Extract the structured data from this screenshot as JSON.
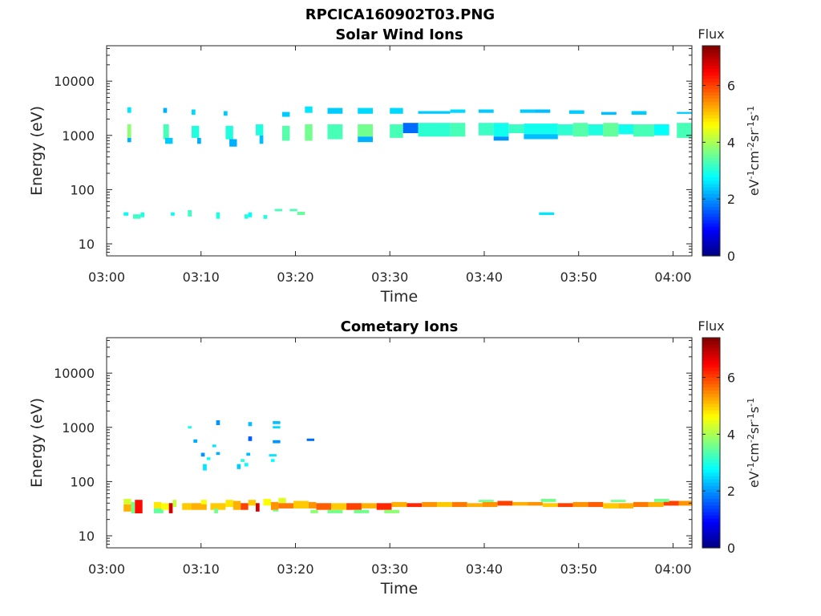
{
  "figure": {
    "title": "RPCICA160902T03.PNG"
  },
  "chart_data": [
    {
      "type": "heatmap",
      "title": "Solar Wind Ions",
      "xlabel": "Time",
      "ylabel": "Energy (eV)",
      "x_tick_labels": [
        "03:00",
        "03:10",
        "03:20",
        "03:30",
        "03:40",
        "03:50",
        "04:00"
      ],
      "x_ticks_minutes": [
        0,
        10,
        20,
        30,
        40,
        50,
        60
      ],
      "xlim_minutes": [
        0,
        62
      ],
      "yscale": "log",
      "ylim": [
        6,
        45000
      ],
      "y_tick_labels": [
        "10",
        "100",
        "1000",
        "10000"
      ],
      "y_ticks": [
        10,
        100,
        1000,
        10000
      ],
      "colorbar": {
        "label": "Flux",
        "unit_label": "eV-1cm-2sr-1s-1",
        "range": [
          0,
          7.4
        ],
        "ticks": [
          0,
          2,
          4,
          6
        ],
        "tick_labels": [
          "0",
          "2",
          "4",
          "6"
        ]
      },
      "cells": [
        [
          2.2,
          2.6,
          2600,
          3300,
          2.6
        ],
        [
          2.2,
          2.6,
          900,
          1600,
          3.8
        ],
        [
          2.2,
          2.6,
          750,
          900,
          2.2
        ],
        [
          6.0,
          6.4,
          2600,
          3200,
          2.2
        ],
        [
          6.0,
          6.6,
          850,
          1600,
          3.3
        ],
        [
          6.2,
          7.0,
          700,
          900,
          2.4
        ],
        [
          9.0,
          9.4,
          2400,
          3000,
          2.5
        ],
        [
          9.0,
          9.8,
          900,
          1500,
          3.0
        ],
        [
          9.6,
          10.0,
          700,
          900,
          2.2
        ],
        [
          12.4,
          12.8,
          2300,
          2800,
          2.4
        ],
        [
          12.6,
          13.4,
          850,
          1500,
          3.0
        ],
        [
          13.0,
          13.8,
          620,
          850,
          2.2
        ],
        [
          15.8,
          16.6,
          1000,
          1600,
          3.0
        ],
        [
          16.2,
          16.6,
          700,
          1000,
          2.3
        ],
        [
          18.6,
          19.4,
          2200,
          2700,
          2.4
        ],
        [
          18.6,
          19.4,
          800,
          1500,
          3.4
        ],
        [
          21.0,
          21.8,
          2600,
          3400,
          2.6
        ],
        [
          21.0,
          21.8,
          800,
          1600,
          3.6
        ],
        [
          23.4,
          25.0,
          2500,
          3200,
          2.4
        ],
        [
          23.4,
          25.0,
          850,
          1600,
          3.3
        ],
        [
          26.6,
          28.2,
          2500,
          3200,
          2.5
        ],
        [
          26.6,
          28.2,
          950,
          1600,
          3.6
        ],
        [
          26.6,
          28.2,
          750,
          950,
          2.2
        ],
        [
          30.0,
          31.4,
          2500,
          3200,
          2.5
        ],
        [
          30.0,
          31.4,
          900,
          1600,
          3.3
        ],
        [
          31.4,
          33.0,
          1100,
          1700,
          1.7
        ],
        [
          33.0,
          36.4,
          2500,
          2800,
          2.4
        ],
        [
          33.0,
          36.4,
          950,
          1700,
          3.1
        ],
        [
          36.4,
          38.0,
          2600,
          3000,
          2.5
        ],
        [
          36.4,
          38.0,
          950,
          1700,
          3.3
        ],
        [
          39.4,
          41.0,
          2600,
          3000,
          2.4
        ],
        [
          39.4,
          41.0,
          1000,
          1700,
          3.2
        ],
        [
          41.0,
          42.6,
          950,
          1700,
          2.9
        ],
        [
          41.0,
          42.6,
          800,
          950,
          2.0
        ],
        [
          42.6,
          44.2,
          1100,
          1600,
          3.2
        ],
        [
          44.2,
          47.8,
          1050,
          1650,
          2.9
        ],
        [
          44.2,
          47.8,
          850,
          1050,
          2.3
        ],
        [
          43.8,
          45.4,
          2600,
          3000,
          2.4
        ],
        [
          45.4,
          47.0,
          2600,
          3000,
          2.3
        ],
        [
          47.8,
          49.4,
          1000,
          1600,
          3.1
        ],
        [
          49.4,
          51.0,
          950,
          1700,
          3.4
        ],
        [
          51.0,
          52.6,
          1000,
          1600,
          3.0
        ],
        [
          52.6,
          54.2,
          950,
          1700,
          3.5
        ],
        [
          54.2,
          55.8,
          1050,
          1600,
          2.9
        ],
        [
          55.8,
          58.0,
          950,
          1600,
          3.3
        ],
        [
          58.0,
          59.6,
          1000,
          1600,
          2.8
        ],
        [
          60.4,
          62.0,
          900,
          1700,
          3.3
        ],
        [
          60.4,
          62.0,
          2500,
          2700,
          2.4
        ],
        [
          49.0,
          50.6,
          2500,
          2900,
          2.4
        ],
        [
          52.4,
          54.0,
          2400,
          2700,
          2.3
        ],
        [
          55.6,
          57.2,
          2400,
          2800,
          2.4
        ],
        [
          1.8,
          2.3,
          33,
          38,
          2.8
        ],
        [
          2.8,
          3.6,
          29,
          35,
          3.2
        ],
        [
          3.6,
          4.0,
          31,
          38,
          3.0
        ],
        [
          6.8,
          7.2,
          33,
          38,
          2.8
        ],
        [
          8.6,
          9.0,
          32,
          42,
          3.2
        ],
        [
          11.6,
          12.0,
          29,
          38,
          3.0
        ],
        [
          14.6,
          15.0,
          29,
          35,
          3.0
        ],
        [
          15.0,
          15.4,
          31,
          38,
          2.8
        ],
        [
          16.6,
          17.0,
          29,
          34,
          3.0
        ],
        [
          17.8,
          18.6,
          40,
          44,
          3.3
        ],
        [
          19.4,
          20.2,
          40,
          44,
          3.3
        ],
        [
          20.2,
          21.0,
          34,
          39,
          3.5
        ],
        [
          45.8,
          47.4,
          34,
          38,
          2.6
        ]
      ]
    },
    {
      "type": "heatmap",
      "title": "Cometary Ions",
      "xlabel": "Time",
      "ylabel": "Energy (eV)",
      "x_tick_labels": [
        "03:00",
        "03:10",
        "03:20",
        "03:30",
        "03:40",
        "03:50",
        "04:00"
      ],
      "x_ticks_minutes": [
        0,
        10,
        20,
        30,
        40,
        50,
        60
      ],
      "xlim_minutes": [
        0,
        62
      ],
      "yscale": "log",
      "ylim": [
        6,
        45000
      ],
      "y_tick_labels": [
        "10",
        "100",
        "1000",
        "10000"
      ],
      "y_ticks": [
        10,
        100,
        1000,
        10000
      ],
      "colorbar": {
        "label": "Flux",
        "unit_label": "eV-1cm-2sr-1s-1",
        "range": [
          0,
          7.4
        ],
        "ticks": [
          0,
          2,
          4,
          6
        ],
        "tick_labels": [
          "0",
          "2",
          "4",
          "6"
        ]
      },
      "cells": [
        [
          8.6,
          9.0,
          950,
          1050,
          2.9
        ],
        [
          11.6,
          12.0,
          1100,
          1350,
          2.0
        ],
        [
          15.0,
          15.4,
          1050,
          1250,
          2.3
        ],
        [
          17.6,
          18.4,
          1150,
          1300,
          2.3
        ],
        [
          17.6,
          18.4,
          950,
          1050,
          2.5
        ],
        [
          21.2,
          22.0,
          560,
          620,
          1.7
        ],
        [
          15.0,
          15.4,
          560,
          680,
          1.6
        ],
        [
          17.6,
          18.4,
          510,
          580,
          2.0
        ],
        [
          9.2,
          9.6,
          520,
          600,
          2.2
        ],
        [
          10.0,
          10.4,
          290,
          340,
          2.0
        ],
        [
          11.2,
          11.6,
          430,
          480,
          2.6
        ],
        [
          11.6,
          12.0,
          310,
          350,
          2.2
        ],
        [
          10.6,
          11.0,
          250,
          280,
          2.8
        ],
        [
          10.2,
          10.6,
          160,
          210,
          2.6
        ],
        [
          14.2,
          14.6,
          230,
          260,
          3.0
        ],
        [
          13.8,
          14.2,
          170,
          210,
          2.4
        ],
        [
          14.6,
          15.0,
          190,
          220,
          2.8
        ],
        [
          14.8,
          15.2,
          300,
          340,
          2.3
        ],
        [
          17.2,
          18.0,
          290,
          320,
          2.6
        ],
        [
          17.4,
          17.8,
          230,
          260,
          2.8
        ],
        [
          1.8,
          2.6,
          38,
          48,
          4.3
        ],
        [
          1.8,
          2.6,
          28,
          38,
          5.2
        ],
        [
          2.6,
          3.0,
          26,
          42,
          3.6
        ],
        [
          3.0,
          3.8,
          26,
          46,
          6.4
        ],
        [
          5.0,
          5.8,
          32,
          42,
          4.8
        ],
        [
          5.0,
          6.0,
          26,
          32,
          3.5
        ],
        [
          5.8,
          6.6,
          30,
          40,
          4.6
        ],
        [
          6.6,
          7.0,
          26,
          40,
          6.8
        ],
        [
          7.0,
          7.4,
          34,
          46,
          4.2
        ],
        [
          8.0,
          9.0,
          30,
          40,
          5.0
        ],
        [
          9.0,
          10.6,
          30,
          40,
          5.2
        ],
        [
          10.0,
          10.6,
          38,
          46,
          4.6
        ],
        [
          11.0,
          12.6,
          30,
          40,
          5.0
        ],
        [
          11.4,
          11.8,
          26,
          32,
          3.6
        ],
        [
          12.6,
          13.4,
          34,
          46,
          4.8
        ],
        [
          13.4,
          14.2,
          30,
          44,
          5.2
        ],
        [
          14.2,
          15.0,
          30,
          40,
          6.0
        ],
        [
          15.0,
          15.8,
          36,
          46,
          5.0
        ],
        [
          15.8,
          16.2,
          28,
          40,
          6.8
        ],
        [
          16.6,
          17.4,
          36,
          48,
          4.6
        ],
        [
          17.4,
          18.2,
          30,
          42,
          5.4
        ],
        [
          17.6,
          18.2,
          28,
          30,
          3.6
        ],
        [
          18.2,
          19.0,
          40,
          50,
          4.4
        ],
        [
          18.2,
          19.8,
          32,
          40,
          5.6
        ],
        [
          19.8,
          21.4,
          32,
          44,
          5.0
        ],
        [
          21.4,
          22.2,
          32,
          42,
          5.4
        ],
        [
          22.2,
          23.8,
          30,
          40,
          5.8
        ],
        [
          21.6,
          22.4,
          26,
          30,
          3.8
        ],
        [
          23.8,
          25.4,
          30,
          40,
          5.0
        ],
        [
          25.4,
          27.0,
          30,
          40,
          6.0
        ],
        [
          27.0,
          28.6,
          32,
          40,
          5.2
        ],
        [
          28.6,
          30.2,
          30,
          40,
          6.2
        ],
        [
          26.2,
          27.8,
          26,
          30,
          3.6
        ],
        [
          30.2,
          31.8,
          34,
          42,
          5.2
        ],
        [
          31.8,
          33.4,
          34,
          40,
          6.2
        ],
        [
          29.4,
          31.0,
          26,
          30,
          3.8
        ],
        [
          33.4,
          35.0,
          34,
          42,
          5.4
        ],
        [
          35.0,
          36.6,
          34,
          42,
          5.0
        ],
        [
          36.6,
          38.2,
          34,
          42,
          5.6
        ],
        [
          38.2,
          39.8,
          34,
          40,
          5.2
        ],
        [
          39.8,
          41.4,
          34,
          42,
          5.4
        ],
        [
          41.4,
          43.0,
          36,
          44,
          6.0
        ],
        [
          43.0,
          44.6,
          36,
          42,
          5.2
        ],
        [
          44.6,
          46.2,
          36,
          42,
          5.4
        ],
        [
          46.2,
          47.8,
          34,
          40,
          5.0
        ],
        [
          47.8,
          49.4,
          34,
          40,
          6.0
        ],
        [
          49.4,
          51.0,
          34,
          42,
          5.4
        ],
        [
          51.0,
          52.6,
          34,
          42,
          5.8
        ],
        [
          52.6,
          54.2,
          32,
          40,
          5.0
        ],
        [
          54.2,
          55.8,
          32,
          40,
          5.2
        ],
        [
          55.8,
          57.4,
          34,
          42,
          5.6
        ],
        [
          57.4,
          59.0,
          34,
          42,
          5.2
        ],
        [
          59.0,
          60.6,
          36,
          44,
          6.0
        ],
        [
          60.6,
          62.0,
          36,
          44,
          5.4
        ],
        [
          23.4,
          25.0,
          26,
          30,
          3.6
        ],
        [
          39.4,
          41.0,
          42,
          46,
          3.6
        ],
        [
          46.0,
          47.6,
          42,
          48,
          3.6
        ],
        [
          53.4,
          55.0,
          42,
          46,
          3.6
        ],
        [
          58.0,
          59.6,
          42,
          48,
          3.6
        ]
      ]
    }
  ]
}
